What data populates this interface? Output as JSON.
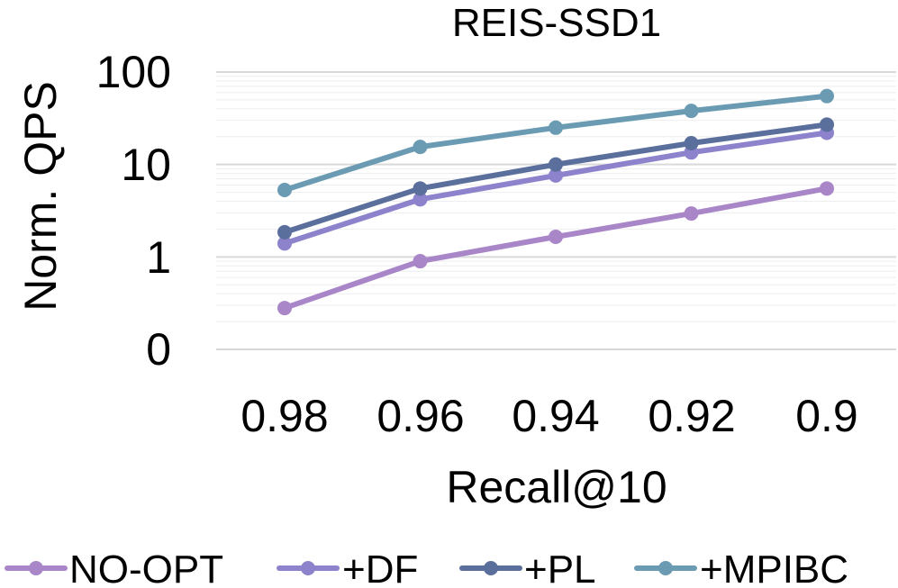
{
  "chart_data": {
    "type": "line",
    "title": "REIS-SSD1",
    "xlabel": "Recall@10",
    "ylabel": "Norm. QPS",
    "y_scale": "log",
    "ylim": [
      0.1,
      100
    ],
    "categories": [
      "0.98",
      "0.96",
      "0.94",
      "0.92",
      "0.9"
    ],
    "y_ticks": [
      {
        "value": 0.1,
        "label": "0"
      },
      {
        "value": 1,
        "label": "1"
      },
      {
        "value": 10,
        "label": "10"
      },
      {
        "value": 100,
        "label": "100"
      }
    ],
    "legend_position": "bottom",
    "series": [
      {
        "name": "NO-OPT",
        "color": "#a886c8",
        "values": [
          0.28,
          0.9,
          1.65,
          2.95,
          5.5
        ]
      },
      {
        "name": "+DF",
        "color": "#8c83cc",
        "values": [
          1.4,
          4.2,
          7.6,
          13.5,
          22
        ]
      },
      {
        "name": "+PL",
        "color": "#5b6f9c",
        "values": [
          1.85,
          5.5,
          10,
          17,
          27
        ]
      },
      {
        "name": "+MPIBC",
        "color": "#6a9bb2",
        "values": [
          5.3,
          15.5,
          25,
          38,
          55
        ]
      }
    ]
  }
}
